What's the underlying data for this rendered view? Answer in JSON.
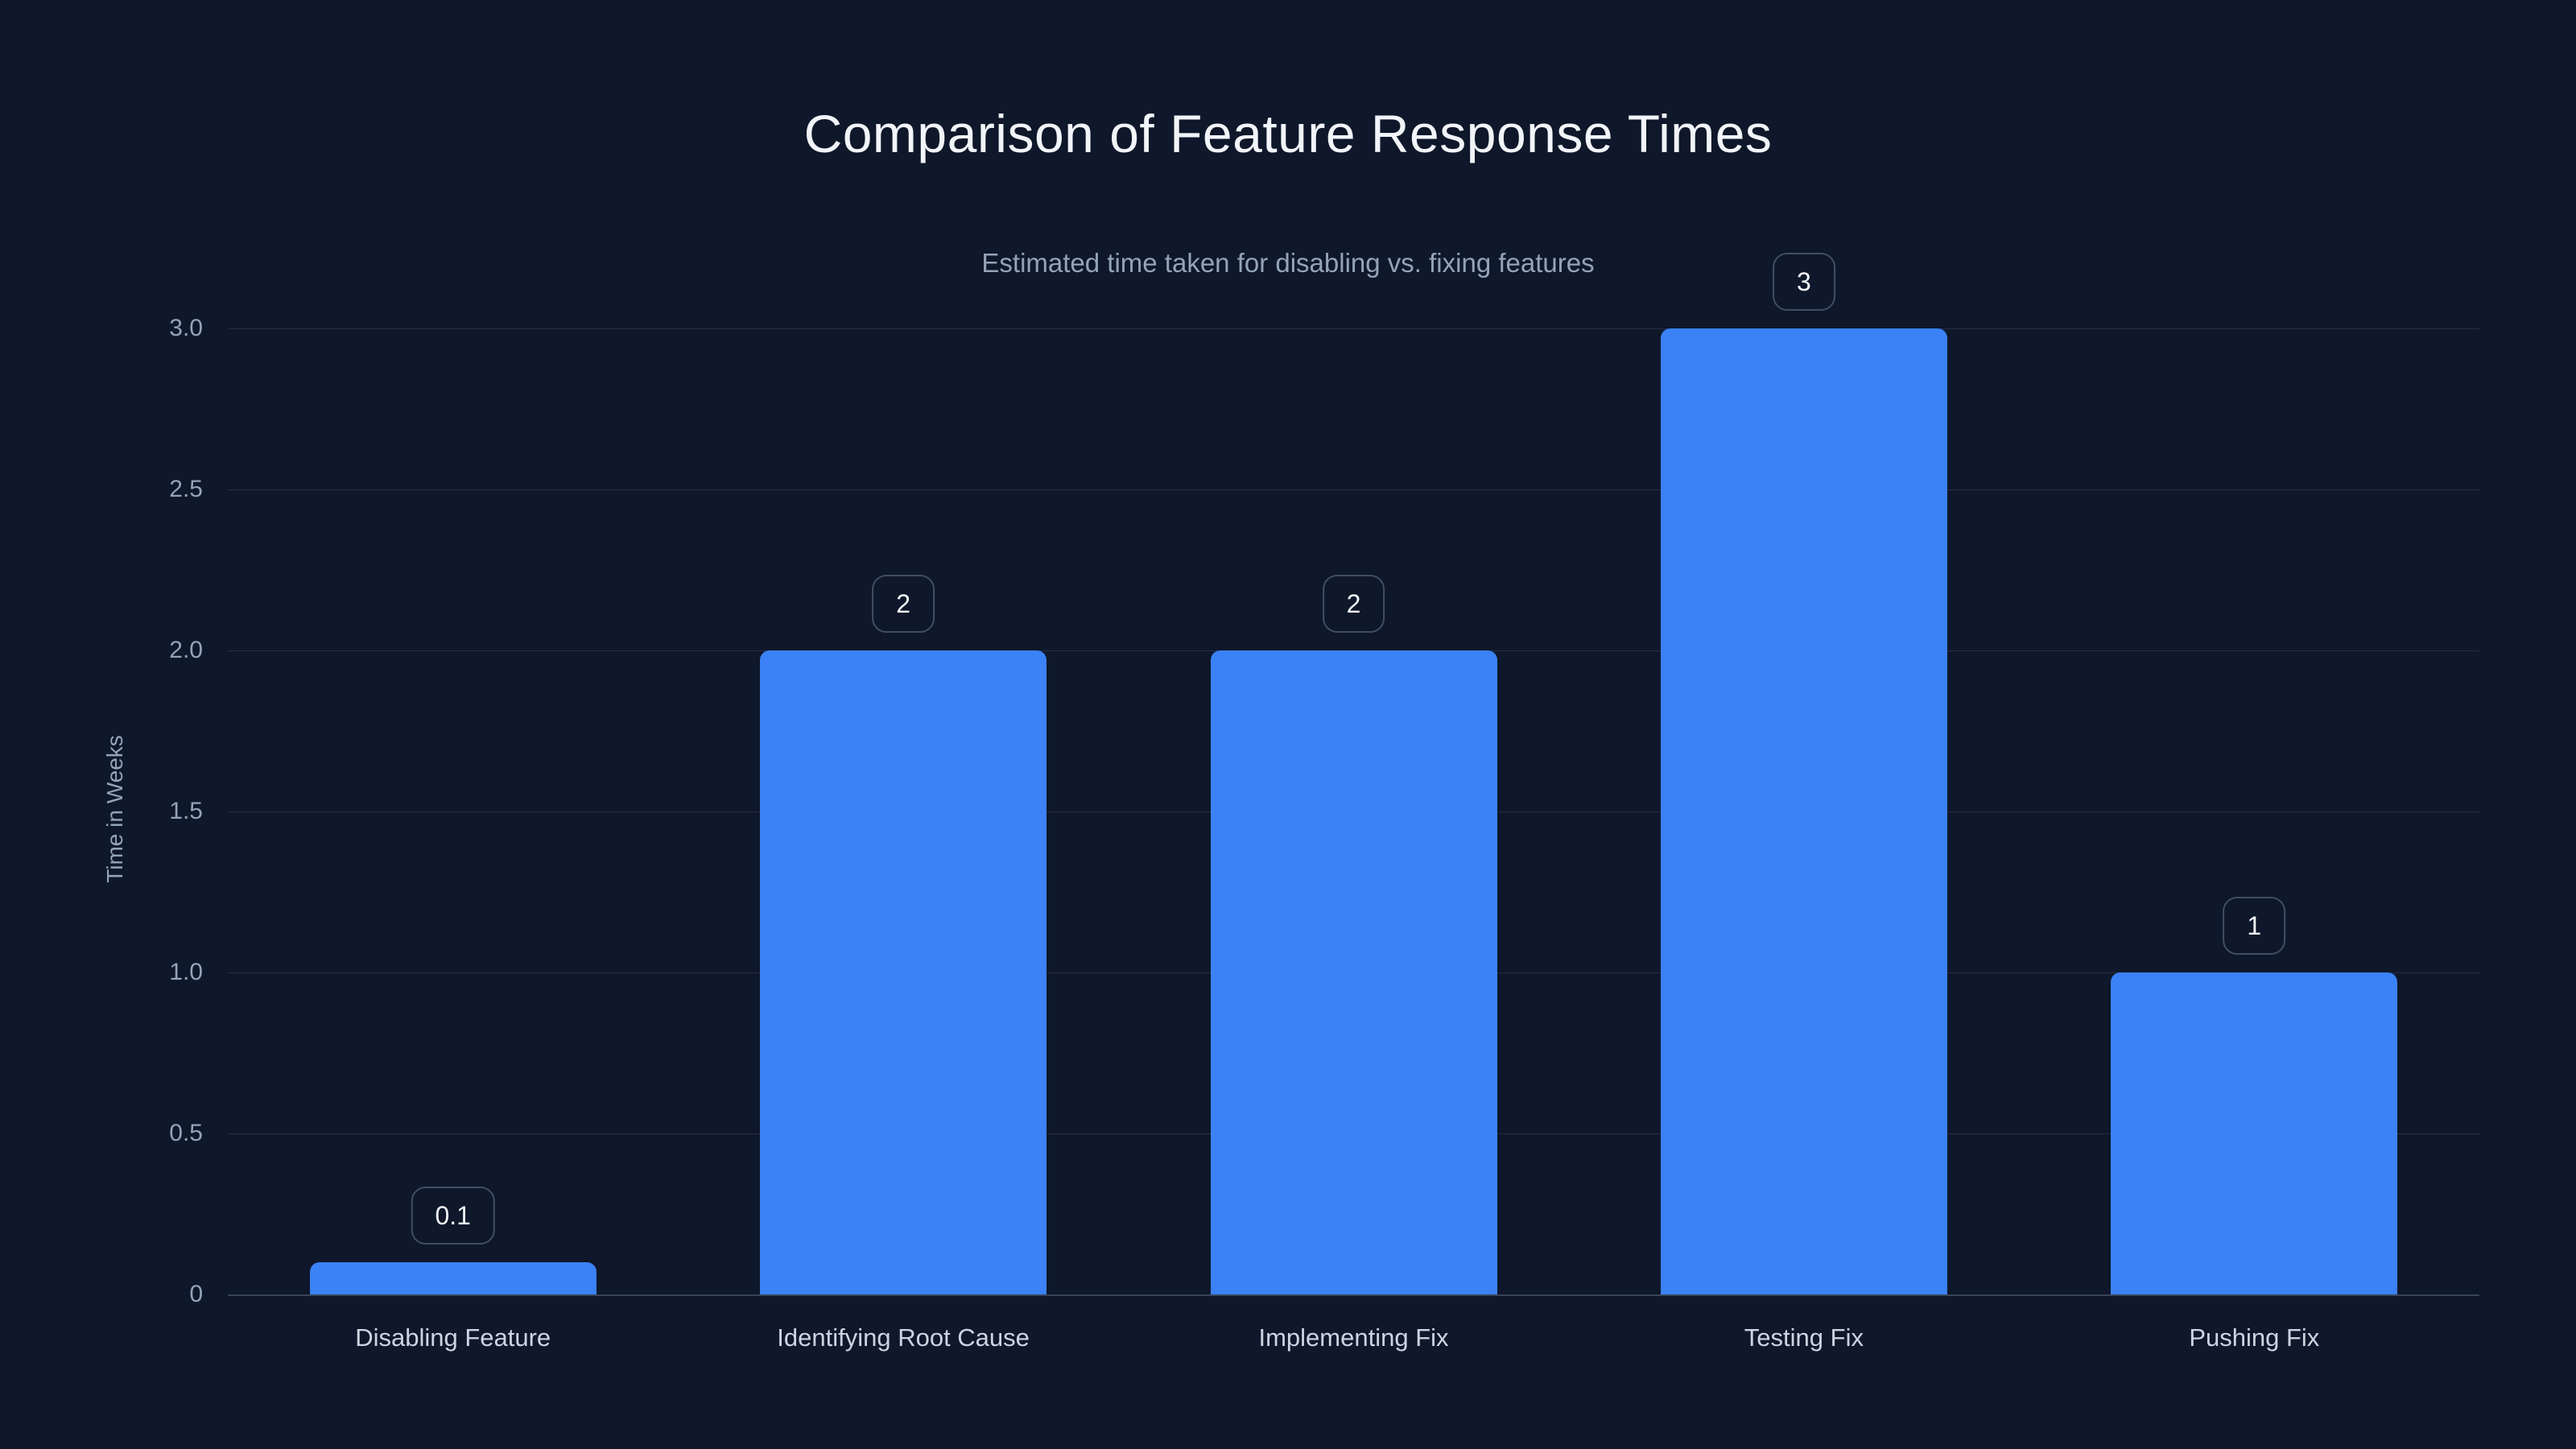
{
  "chart": {
    "title": "Comparison of Feature Response Times",
    "subtitle": "Estimated time taken for disabling vs. fixing features"
  },
  "chart_data": {
    "type": "bar",
    "title": "Comparison of Feature Response Times",
    "subtitle": "Estimated time taken for disabling vs. fixing features",
    "categories": [
      "Disabling Feature",
      "Identifying Root Cause",
      "Implementing Fix",
      "Testing Fix",
      "Pushing Fix"
    ],
    "values": [
      0.1,
      2,
      2,
      3,
      1
    ],
    "value_labels": [
      "0.1",
      "2",
      "2",
      "3",
      "1"
    ],
    "xlabel": "",
    "ylabel": "Time in Weeks",
    "ylim": [
      0,
      3
    ],
    "yticks": [
      "0",
      "0.5",
      "1.0",
      "1.5",
      "2.0",
      "2.5",
      "3.0"
    ],
    "grid": "horizontal-only",
    "legend": "none",
    "colors": {
      "background": "#0f172a",
      "bar": "#3b82f6",
      "title": "#f1f5f9",
      "subtitle": "#94a3b8",
      "tick_label": "#94a3b8",
      "category_label": "#cbd5e1",
      "badge_text": "#f1f5f9",
      "badge_border": "#424e63",
      "gridline": "#242e42",
      "baseline": "#38445a"
    }
  }
}
